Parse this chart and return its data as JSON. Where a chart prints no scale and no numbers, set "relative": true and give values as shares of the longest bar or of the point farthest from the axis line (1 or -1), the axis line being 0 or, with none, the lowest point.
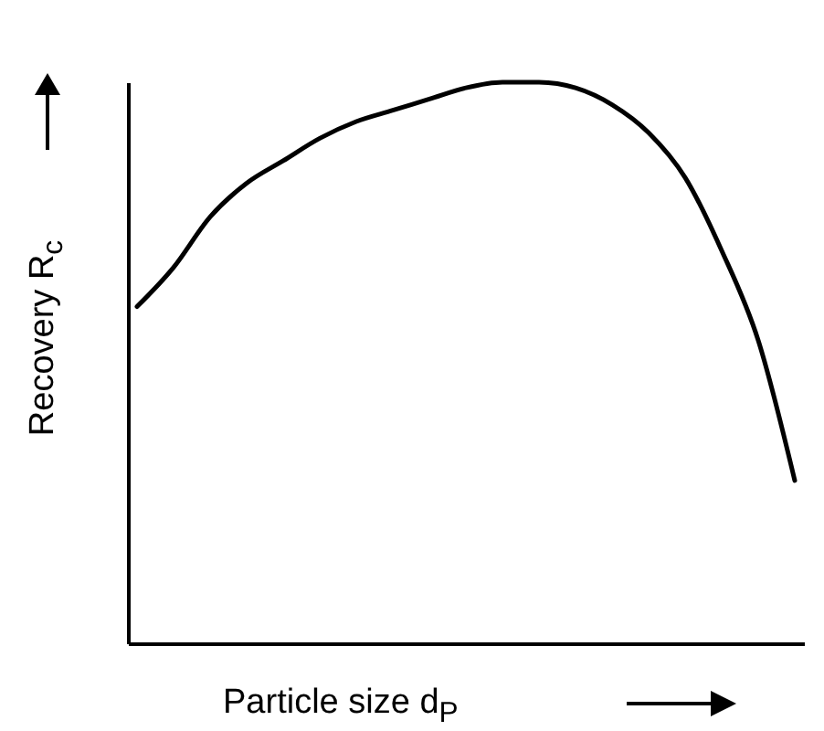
{
  "chart_data": {
    "type": "line",
    "relative": true,
    "xlabel": "Particle size d$_{P}$",
    "ylabel": "Recovery R$_{c}$",
    "categories": [
      null,
      null,
      null,
      null,
      null,
      null,
      null,
      null,
      null,
      null,
      null,
      null,
      null,
      null,
      null,
      null,
      null,
      null,
      null
    ],
    "series": [
      {
        "color": "#000000",
        "values": [
          0.6,
          0.67,
          0.76,
          0.82,
          0.86,
          0.9,
          0.93,
          0.95,
          0.97,
          0.99,
          1.0,
          1.0,
          0.99,
          0.96,
          0.91,
          0.83,
          0.7,
          0.54,
          0.29
        ]
      }
    ],
    "grid": false,
    "legend": false,
    "tick_labels": false
  }
}
